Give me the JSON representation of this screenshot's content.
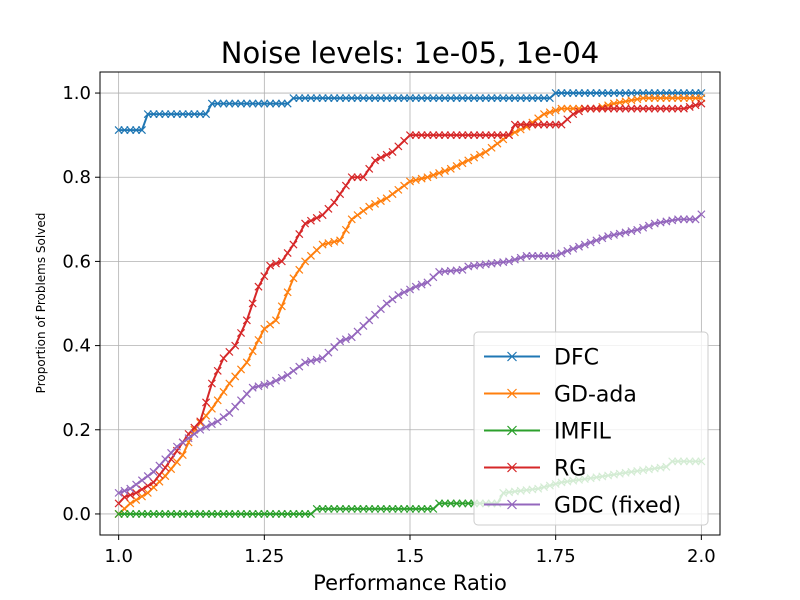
{
  "chart_data": {
    "type": "line",
    "title": "Noise levels: 1e-05, 1e-04",
    "xlabel": "Performance Ratio",
    "ylabel": "Proportion of Problems Solved",
    "xlim": [
      0.968,
      2.032
    ],
    "ylim": [
      -0.05,
      1.05
    ],
    "xticks": [
      1.0,
      1.25,
      1.5,
      1.75,
      2.0
    ],
    "xtick_labels": [
      "1.0",
      "1.25",
      "1.5",
      "1.75",
      "2.0"
    ],
    "yticks": [
      0.0,
      0.2,
      0.4,
      0.6,
      0.8,
      1.0
    ],
    "ytick_labels": [
      "0.0",
      "0.2",
      "0.4",
      "0.6",
      "0.8",
      "1.0"
    ],
    "grid": true,
    "legend_position": "lower-right",
    "marker": "x",
    "series": [
      {
        "name": "DFC",
        "color": "#1f77b4",
        "points": [
          [
            1.0,
            0.912
          ],
          [
            1.04,
            0.912
          ],
          [
            1.05,
            0.95
          ],
          [
            1.15,
            0.95
          ],
          [
            1.16,
            0.975
          ],
          [
            1.29,
            0.975
          ],
          [
            1.3,
            0.988
          ],
          [
            1.74,
            0.988
          ],
          [
            1.75,
            1.0
          ],
          [
            2.0,
            1.0
          ]
        ]
      },
      {
        "name": "GD-ada",
        "color": "#ff7f0e",
        "points": [
          [
            1.0,
            0.0
          ],
          [
            1.02,
            0.025
          ],
          [
            1.05,
            0.05
          ],
          [
            1.08,
            0.09
          ],
          [
            1.11,
            0.14
          ],
          [
            1.13,
            0.2
          ],
          [
            1.16,
            0.25
          ],
          [
            1.19,
            0.31
          ],
          [
            1.22,
            0.36
          ],
          [
            1.25,
            0.44
          ],
          [
            1.27,
            0.46
          ],
          [
            1.3,
            0.56
          ],
          [
            1.32,
            0.6
          ],
          [
            1.35,
            0.64
          ],
          [
            1.38,
            0.65
          ],
          [
            1.4,
            0.7
          ],
          [
            1.43,
            0.73
          ],
          [
            1.46,
            0.75
          ],
          [
            1.5,
            0.79
          ],
          [
            1.53,
            0.8
          ],
          [
            1.57,
            0.82
          ],
          [
            1.6,
            0.84
          ],
          [
            1.63,
            0.86
          ],
          [
            1.67,
            0.9
          ],
          [
            1.7,
            0.92
          ],
          [
            1.73,
            0.95
          ],
          [
            1.76,
            0.963
          ],
          [
            1.82,
            0.963
          ],
          [
            1.85,
            0.975
          ],
          [
            1.9,
            0.988
          ],
          [
            2.0,
            0.988
          ]
        ]
      },
      {
        "name": "IMFIL",
        "color": "#2ca02c",
        "points": [
          [
            1.0,
            0.0
          ],
          [
            1.33,
            0.0
          ],
          [
            1.34,
            0.012
          ],
          [
            1.54,
            0.012
          ],
          [
            1.55,
            0.025
          ],
          [
            1.65,
            0.025
          ],
          [
            1.66,
            0.05
          ],
          [
            1.72,
            0.06
          ],
          [
            1.76,
            0.075
          ],
          [
            1.82,
            0.087
          ],
          [
            1.88,
            0.1
          ],
          [
            1.94,
            0.112
          ],
          [
            1.95,
            0.125
          ],
          [
            2.0,
            0.125
          ]
        ]
      },
      {
        "name": "RG",
        "color": "#d62728",
        "points": [
          [
            1.0,
            0.025
          ],
          [
            1.01,
            0.04
          ],
          [
            1.03,
            0.05
          ],
          [
            1.06,
            0.075
          ],
          [
            1.08,
            0.11
          ],
          [
            1.1,
            0.15
          ],
          [
            1.12,
            0.19
          ],
          [
            1.14,
            0.22
          ],
          [
            1.16,
            0.31
          ],
          [
            1.18,
            0.37
          ],
          [
            1.2,
            0.4
          ],
          [
            1.22,
            0.46
          ],
          [
            1.24,
            0.54
          ],
          [
            1.26,
            0.59
          ],
          [
            1.28,
            0.6
          ],
          [
            1.3,
            0.64
          ],
          [
            1.32,
            0.69
          ],
          [
            1.35,
            0.71
          ],
          [
            1.37,
            0.74
          ],
          [
            1.4,
            0.8
          ],
          [
            1.42,
            0.8
          ],
          [
            1.44,
            0.84
          ],
          [
            1.47,
            0.86
          ],
          [
            1.5,
            0.9
          ],
          [
            1.67,
            0.9
          ],
          [
            1.68,
            0.925
          ],
          [
            1.76,
            0.925
          ],
          [
            1.78,
            0.95
          ],
          [
            1.8,
            0.963
          ],
          [
            1.97,
            0.963
          ],
          [
            2.0,
            0.975
          ]
        ]
      },
      {
        "name": "GDC (fixed)",
        "color": "#9467bd",
        "points": [
          [
            1.0,
            0.05
          ],
          [
            1.02,
            0.06
          ],
          [
            1.04,
            0.08
          ],
          [
            1.06,
            0.1
          ],
          [
            1.08,
            0.13
          ],
          [
            1.1,
            0.16
          ],
          [
            1.12,
            0.18
          ],
          [
            1.14,
            0.2
          ],
          [
            1.17,
            0.22
          ],
          [
            1.19,
            0.24
          ],
          [
            1.21,
            0.27
          ],
          [
            1.23,
            0.3
          ],
          [
            1.26,
            0.31
          ],
          [
            1.29,
            0.33
          ],
          [
            1.32,
            0.36
          ],
          [
            1.35,
            0.37
          ],
          [
            1.38,
            0.41
          ],
          [
            1.4,
            0.42
          ],
          [
            1.43,
            0.46
          ],
          [
            1.46,
            0.5
          ],
          [
            1.48,
            0.52
          ],
          [
            1.51,
            0.54
          ],
          [
            1.53,
            0.55
          ],
          [
            1.55,
            0.575
          ],
          [
            1.59,
            0.58
          ],
          [
            1.6,
            0.588
          ],
          [
            1.67,
            0.6
          ],
          [
            1.7,
            0.613
          ],
          [
            1.75,
            0.613
          ],
          [
            1.77,
            0.625
          ],
          [
            1.8,
            0.64
          ],
          [
            1.84,
            0.66
          ],
          [
            1.89,
            0.675
          ],
          [
            1.92,
            0.69
          ],
          [
            1.96,
            0.7
          ],
          [
            1.99,
            0.7
          ],
          [
            2.0,
            0.712
          ]
        ]
      }
    ]
  }
}
